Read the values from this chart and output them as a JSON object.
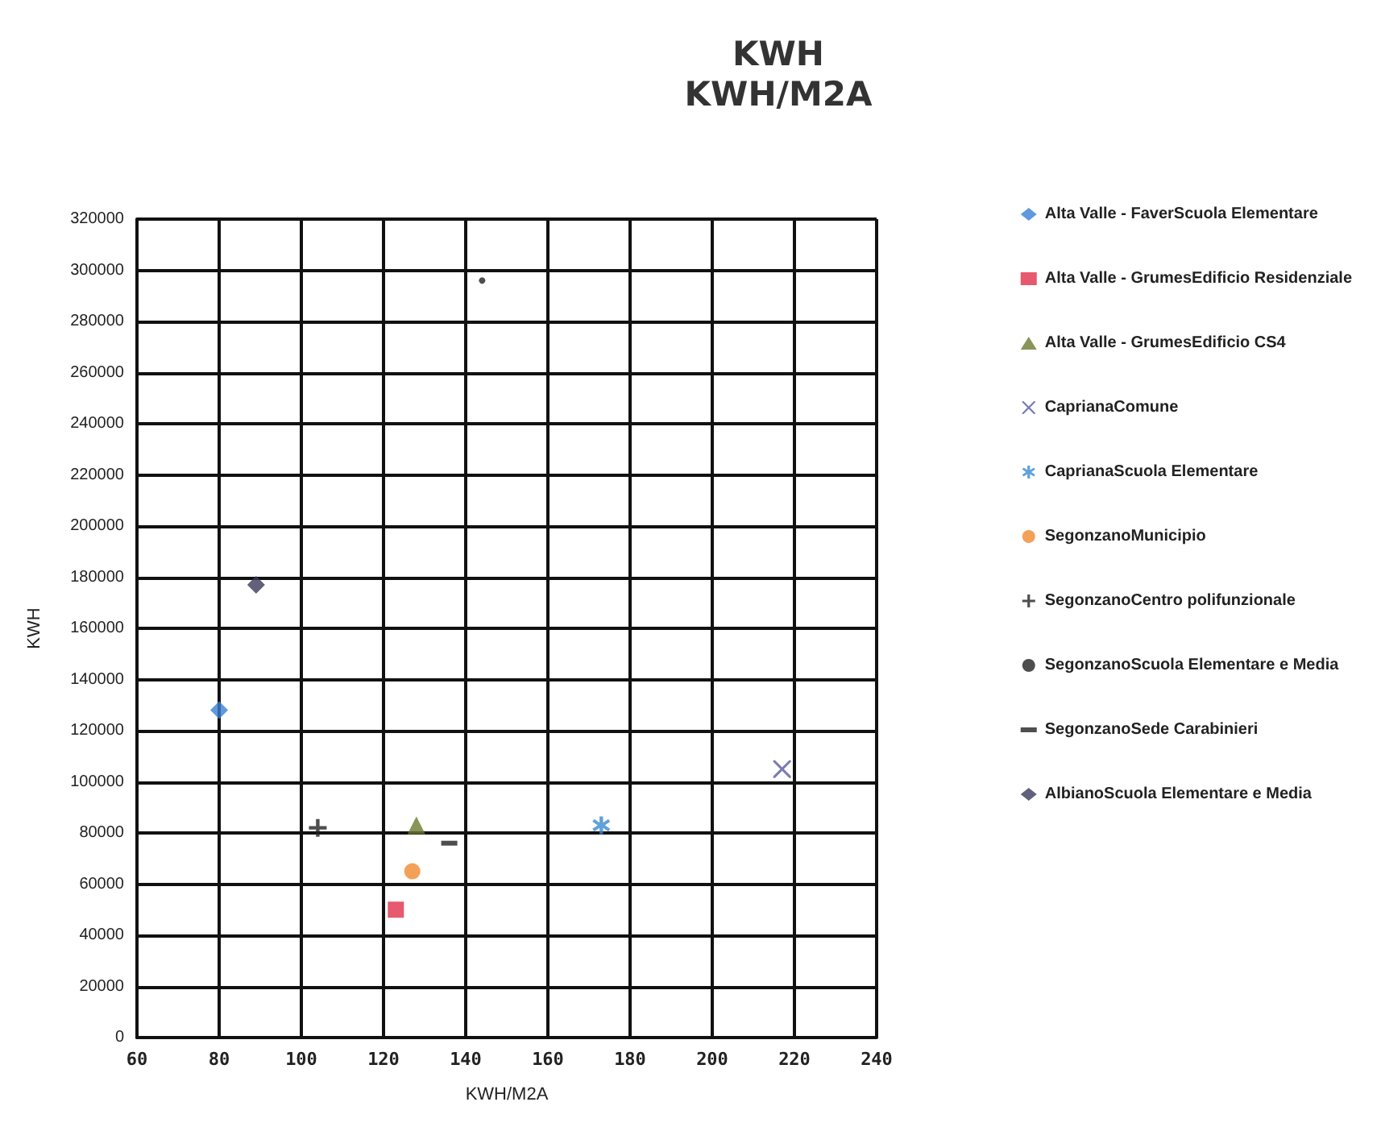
{
  "chart_data": {
    "type": "scatter",
    "title": "KWH",
    "subtitle": "KWH/M2A",
    "xlabel": "KWH/M2A",
    "ylabel": "KWH",
    "xlim": [
      60,
      240
    ],
    "xticks": [
      60,
      80,
      100,
      120,
      140,
      160,
      180,
      200,
      220,
      240
    ],
    "ylim": [
      0,
      320000
    ],
    "yticks": [
      0,
      20000,
      40000,
      60000,
      80000,
      100000,
      120000,
      140000,
      160000,
      180000,
      200000,
      220000,
      240000,
      260000,
      280000,
      300000,
      320000
    ],
    "grid": true,
    "legend": "right",
    "series": [
      {
        "name": "Alta Valle - FaverScuola Elementare",
        "color": "#3a7fd5",
        "marker": "diamond",
        "x": [
          80
        ],
        "values": [
          128000
        ]
      },
      {
        "name": "Alta Valle - GrumesEdificio Residenziale",
        "color": "#e0304a",
        "marker": "square",
        "x": [
          123
        ],
        "values": [
          50000
        ]
      },
      {
        "name": "Alta Valle - GrumesEdificio CS4",
        "color": "#6a7a30",
        "marker": "triangle",
        "x": [
          128
        ],
        "values": [
          83000
        ]
      },
      {
        "name": "CaprianaComune",
        "color": "#5a5aa0",
        "marker": "cross",
        "x": [
          217
        ],
        "values": [
          105000
        ]
      },
      {
        "name": "CaprianaScuola Elementare",
        "color": "#3a8ad0",
        "marker": "star",
        "x": [
          173
        ],
        "values": [
          83000
        ]
      },
      {
        "name": "SegonzanoMunicipio",
        "color": "#f08a30",
        "marker": "circle",
        "x": [
          127
        ],
        "values": [
          65000
        ]
      },
      {
        "name": "SegonzanoCentro polifunzionale",
        "color": "#222222",
        "marker": "plus",
        "x": [
          104
        ],
        "values": [
          82000
        ]
      },
      {
        "name": "SegonzanoScuola Elementare e Media",
        "color": "#222222",
        "marker": "dot",
        "x": [
          144
        ],
        "values": [
          296000
        ]
      },
      {
        "name": "SegonzanoSede Carabinieri",
        "color": "#222222",
        "x": [
          136
        ],
        "values": [
          76000
        ]
      },
      {
        "name": "AlbianoScuola Elementare e Media",
        "color": "#3a3a5a",
        "marker": "diamond",
        "x": [
          89
        ],
        "values": [
          177000
        ]
      }
    ]
  }
}
